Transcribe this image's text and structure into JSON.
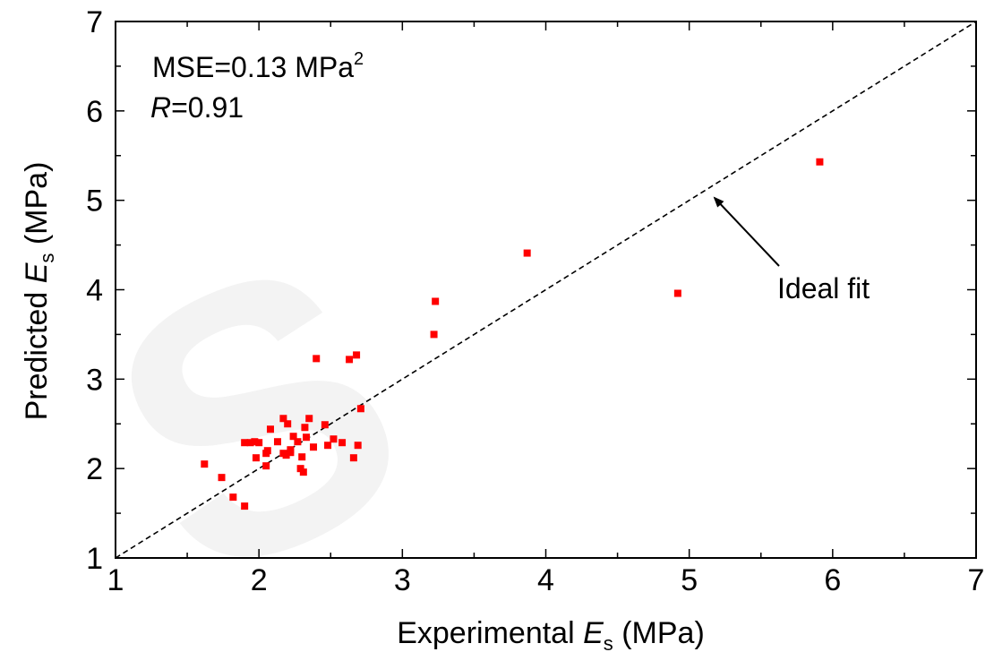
{
  "chart_data": {
    "type": "scatter",
    "xlabel": {
      "prefix": "Experimental ",
      "var": "E",
      "sub": "s",
      "suffix": " (MPa)"
    },
    "ylabel": {
      "prefix": "Predicted ",
      "var": "E",
      "sub": "s",
      "suffix": " (MPa)"
    },
    "xlim": [
      1,
      7
    ],
    "ylim": [
      1,
      7
    ],
    "xticks": [
      "1",
      "2",
      "3",
      "4",
      "5",
      "6",
      "7"
    ],
    "yticks": [
      "1",
      "2",
      "3",
      "4",
      "5",
      "6",
      "7"
    ],
    "grid": false,
    "series": [
      {
        "marker": "square",
        "color": "#ff0000",
        "points": [
          [
            1.62,
            2.05
          ],
          [
            1.74,
            1.9
          ],
          [
            1.82,
            1.68
          ],
          [
            1.9,
            1.58
          ],
          [
            1.9,
            2.29
          ],
          [
            1.94,
            2.29
          ],
          [
            1.97,
            2.3
          ],
          [
            1.98,
            2.12
          ],
          [
            2.0,
            2.29
          ],
          [
            2.05,
            2.03
          ],
          [
            2.05,
            2.17
          ],
          [
            2.06,
            2.2
          ],
          [
            2.08,
            2.44
          ],
          [
            2.13,
            2.3
          ],
          [
            2.17,
            2.56
          ],
          [
            2.17,
            2.17
          ],
          [
            2.19,
            2.15
          ],
          [
            2.2,
            2.5
          ],
          [
            2.22,
            2.18
          ],
          [
            2.22,
            2.21
          ],
          [
            2.24,
            2.36
          ],
          [
            2.27,
            2.3
          ],
          [
            2.29,
            2.0
          ],
          [
            2.3,
            2.13
          ],
          [
            2.31,
            1.96
          ],
          [
            2.32,
            2.46
          ],
          [
            2.33,
            2.35
          ],
          [
            2.35,
            2.56
          ],
          [
            2.38,
            2.24
          ],
          [
            2.4,
            3.23
          ],
          [
            2.46,
            2.49
          ],
          [
            2.48,
            2.26
          ],
          [
            2.52,
            2.33
          ],
          [
            2.58,
            2.29
          ],
          [
            2.63,
            3.22
          ],
          [
            2.66,
            2.12
          ],
          [
            2.68,
            3.27
          ],
          [
            2.69,
            2.26
          ],
          [
            2.71,
            2.67
          ],
          [
            3.22,
            3.5
          ],
          [
            3.23,
            3.87
          ],
          [
            3.87,
            4.41
          ],
          [
            4.92,
            3.96
          ],
          [
            5.91,
            5.43
          ]
        ]
      }
    ],
    "reference_line": {
      "label": "Ideal fit",
      "from": [
        1,
        1
      ],
      "to": [
        7,
        7
      ],
      "style": "dashed"
    },
    "annotations": {
      "mse": {
        "text": "MSE=0.13 MPa",
        "sup": "2"
      },
      "r": {
        "var": "R",
        "text": "=0.91"
      },
      "ideal_fit": {
        "text": "Ideal fit",
        "arrow_target": [
          5.18,
          5.18
        ]
      }
    },
    "watermark": "S"
  }
}
